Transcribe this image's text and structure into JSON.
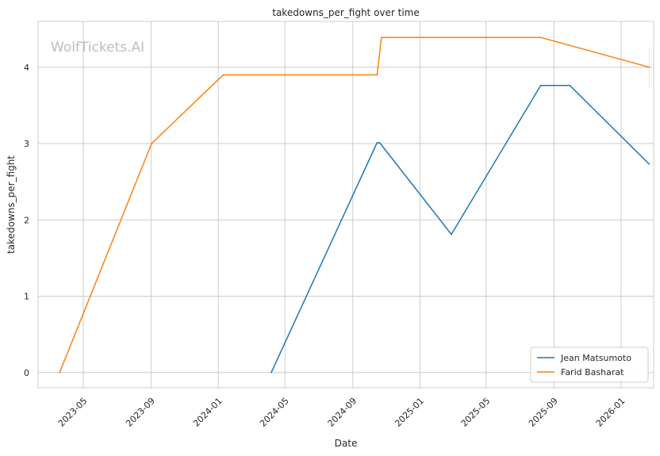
{
  "chart_data": {
    "type": "line",
    "title": "takedowns_per_fight over time",
    "xlabel": "Date",
    "ylabel": "takedowns_per_fight",
    "watermark": "WolfTickets.AI",
    "x_ticks": [
      "2023-05",
      "2023-09",
      "2024-01",
      "2024-05",
      "2024-09",
      "2025-01",
      "2025-05",
      "2025-09",
      "2026-01"
    ],
    "y_ticks": [
      "0",
      "1",
      "2",
      "3",
      "4"
    ],
    "xlim": [
      "2023-02-08",
      "2026-03-01"
    ],
    "ylim": [
      -0.2,
      4.6
    ],
    "grid": true,
    "legend_position": "bottom-right",
    "series": [
      {
        "name": "Jean Matsumoto",
        "color": "#1f77b4",
        "points": [
          {
            "x": "2024-04-06",
            "y": 0
          },
          {
            "x": "2024-10-15",
            "y": 3.01
          },
          {
            "x": "2024-10-20",
            "y": 3.01
          },
          {
            "x": "2025-02-27",
            "y": 1.81
          },
          {
            "x": "2025-08-08",
            "y": 3.76
          },
          {
            "x": "2025-09-30",
            "y": 3.76
          },
          {
            "x": "2026-02-21",
            "y": 2.73
          }
        ]
      },
      {
        "name": "Farid Basharat",
        "color": "#ff7f0e",
        "points": [
          {
            "x": "2023-03-19",
            "y": 0
          },
          {
            "x": "2023-09-02",
            "y": 3.0
          },
          {
            "x": "2024-01-10",
            "y": 3.9
          },
          {
            "x": "2024-10-15",
            "y": 3.9
          },
          {
            "x": "2024-10-23",
            "y": 4.39
          },
          {
            "x": "2025-08-08",
            "y": 4.39
          },
          {
            "x": "2026-02-21",
            "y": 4.0
          }
        ]
      }
    ]
  }
}
